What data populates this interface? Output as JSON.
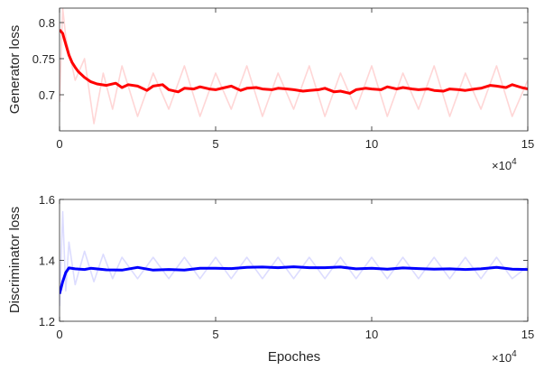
{
  "chart_data": [
    {
      "type": "line",
      "ylabel": "Generator loss",
      "xlabel": "",
      "xlim": [
        0,
        150000
      ],
      "ylim": [
        0.65,
        0.82
      ],
      "x_ticks": [
        "0",
        "5",
        "10",
        "15"
      ],
      "y_ticks": [
        "0.7",
        "0.75",
        "0.8"
      ],
      "x_multiplier": "×10",
      "x_exponent": "4",
      "grid": false,
      "series": [
        {
          "role": "raw",
          "color": "#ffd6d6",
          "x": [
            0,
            1000,
            2000,
            3000,
            5000,
            8000,
            11000,
            14000,
            17000,
            20000,
            25000,
            30000,
            35000,
            40000,
            45000,
            50000,
            55000,
            60000,
            65000,
            70000,
            75000,
            80000,
            85000,
            90000,
            95000,
            100000,
            105000,
            110000,
            115000,
            120000,
            125000,
            130000,
            135000,
            140000,
            145000,
            150000
          ],
          "values": [
            0.69,
            0.82,
            0.78,
            0.76,
            0.72,
            0.75,
            0.66,
            0.73,
            0.68,
            0.74,
            0.67,
            0.73,
            0.68,
            0.74,
            0.67,
            0.73,
            0.68,
            0.74,
            0.67,
            0.73,
            0.68,
            0.74,
            0.67,
            0.73,
            0.68,
            0.74,
            0.67,
            0.73,
            0.68,
            0.74,
            0.67,
            0.73,
            0.68,
            0.74,
            0.67,
            0.72
          ]
        },
        {
          "role": "smoothed",
          "color": "#ff0000",
          "x": [
            0,
            1000,
            2000,
            3000,
            4000,
            5000,
            6000,
            8000,
            10000,
            12000,
            15000,
            18000,
            20000,
            22000,
            25000,
            28000,
            30000,
            33000,
            35000,
            38000,
            40000,
            43000,
            45000,
            48000,
            50000,
            53000,
            55000,
            58000,
            60000,
            63000,
            65000,
            68000,
            70000,
            73000,
            75000,
            78000,
            80000,
            83000,
            85000,
            88000,
            90000,
            93000,
            95000,
            98000,
            100000,
            103000,
            105000,
            108000,
            110000,
            113000,
            115000,
            118000,
            120000,
            123000,
            125000,
            128000,
            130000,
            133000,
            135000,
            138000,
            140000,
            143000,
            145000,
            148000,
            150000
          ],
          "values": [
            0.79,
            0.785,
            0.77,
            0.755,
            0.745,
            0.738,
            0.732,
            0.724,
            0.718,
            0.715,
            0.713,
            0.716,
            0.71,
            0.714,
            0.712,
            0.706,
            0.712,
            0.714,
            0.707,
            0.704,
            0.709,
            0.708,
            0.711,
            0.708,
            0.707,
            0.71,
            0.712,
            0.706,
            0.709,
            0.71,
            0.708,
            0.707,
            0.709,
            0.708,
            0.707,
            0.705,
            0.706,
            0.707,
            0.709,
            0.704,
            0.705,
            0.702,
            0.707,
            0.709,
            0.708,
            0.707,
            0.711,
            0.708,
            0.71,
            0.708,
            0.707,
            0.708,
            0.706,
            0.705,
            0.708,
            0.707,
            0.706,
            0.708,
            0.709,
            0.713,
            0.712,
            0.71,
            0.714,
            0.71,
            0.708
          ]
        }
      ]
    },
    {
      "type": "line",
      "ylabel": "Discriminator loss",
      "xlabel": "Epoches",
      "xlim": [
        0,
        150000
      ],
      "ylim": [
        1.2,
        1.6
      ],
      "x_ticks": [
        "0",
        "5",
        "10",
        "15"
      ],
      "y_ticks": [
        "1.2",
        "1.4",
        "1.6"
      ],
      "x_multiplier": "×10",
      "x_exponent": "4",
      "grid": false,
      "series": [
        {
          "role": "raw",
          "color": "#dcdcff",
          "x": [
            0,
            1000,
            2000,
            3000,
            5000,
            8000,
            11000,
            14000,
            17000,
            20000,
            25000,
            30000,
            35000,
            40000,
            45000,
            50000,
            55000,
            60000,
            65000,
            70000,
            75000,
            80000,
            85000,
            90000,
            95000,
            100000,
            105000,
            110000,
            115000,
            120000,
            125000,
            130000,
            135000,
            140000,
            145000,
            150000
          ],
          "values": [
            1.25,
            1.56,
            1.3,
            1.46,
            1.32,
            1.43,
            1.33,
            1.42,
            1.34,
            1.41,
            1.34,
            1.41,
            1.34,
            1.41,
            1.34,
            1.41,
            1.34,
            1.41,
            1.34,
            1.41,
            1.34,
            1.41,
            1.34,
            1.41,
            1.34,
            1.41,
            1.34,
            1.41,
            1.34,
            1.41,
            1.34,
            1.41,
            1.34,
            1.41,
            1.34,
            1.38
          ]
        },
        {
          "role": "smoothed",
          "color": "#0000ff",
          "x": [
            0,
            1000,
            2000,
            3000,
            5000,
            8000,
            10000,
            15000,
            20000,
            25000,
            30000,
            35000,
            40000,
            45000,
            50000,
            55000,
            60000,
            65000,
            70000,
            75000,
            80000,
            85000,
            90000,
            95000,
            100000,
            105000,
            110000,
            115000,
            120000,
            125000,
            130000,
            135000,
            140000,
            145000,
            150000
          ],
          "values": [
            1.29,
            1.33,
            1.36,
            1.375,
            1.372,
            1.37,
            1.374,
            1.369,
            1.368,
            1.377,
            1.368,
            1.37,
            1.368,
            1.374,
            1.374,
            1.373,
            1.377,
            1.378,
            1.376,
            1.379,
            1.376,
            1.376,
            1.378,
            1.372,
            1.374,
            1.371,
            1.375,
            1.373,
            1.371,
            1.372,
            1.37,
            1.372,
            1.377,
            1.371,
            1.37
          ]
        }
      ]
    }
  ]
}
